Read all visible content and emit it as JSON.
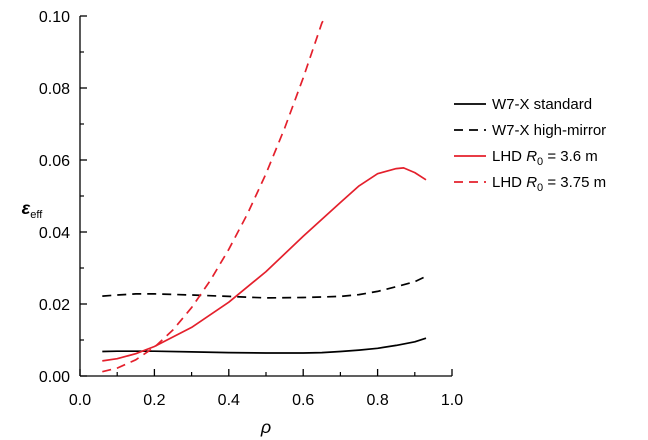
{
  "chart_data": {
    "type": "line",
    "title": "",
    "xlabel": "ρ",
    "ylabel": {
      "main": "ε",
      "sub": "eff"
    },
    "xlim": [
      0.0,
      1.0
    ],
    "ylim": [
      0.0,
      0.1
    ],
    "xticks": [
      0.0,
      0.2,
      0.4,
      0.6,
      0.8,
      1.0
    ],
    "xtick_labels": [
      "0.0",
      "0.2",
      "0.4",
      "0.6",
      "0.8",
      "1.0"
    ],
    "yticks": [
      0.0,
      0.02,
      0.04,
      0.06,
      0.08,
      0.1
    ],
    "ytick_labels": [
      "0.00",
      "0.02",
      "0.04",
      "0.06",
      "0.08",
      "0.10"
    ],
    "grid": false,
    "legend_position": "right",
    "series": [
      {
        "name": "W7-X standard",
        "legend": {
          "pre": "W7-X standard",
          "italic": "",
          "sub": "",
          "post": ""
        },
        "color": "#000000",
        "dash": "solid",
        "x": [
          0.06,
          0.1,
          0.2,
          0.3,
          0.4,
          0.5,
          0.6,
          0.65,
          0.7,
          0.75,
          0.8,
          0.85,
          0.9,
          0.93
        ],
        "y": [
          0.0068,
          0.0069,
          0.0069,
          0.0067,
          0.0065,
          0.0064,
          0.0064,
          0.0065,
          0.0068,
          0.0072,
          0.0077,
          0.0085,
          0.0095,
          0.0105
        ]
      },
      {
        "name": "W7-X high-mirror",
        "legend": {
          "pre": "W7-X high-mirror",
          "italic": "",
          "sub": "",
          "post": ""
        },
        "color": "#000000",
        "dash": "dashed",
        "x": [
          0.06,
          0.1,
          0.15,
          0.2,
          0.3,
          0.4,
          0.5,
          0.6,
          0.7,
          0.75,
          0.8,
          0.85,
          0.9,
          0.93
        ],
        "y": [
          0.0222,
          0.0225,
          0.0228,
          0.0228,
          0.0225,
          0.0221,
          0.0217,
          0.0218,
          0.0221,
          0.0226,
          0.0235,
          0.0248,
          0.0262,
          0.0277
        ]
      },
      {
        "name": "LHD R0 = 3.6 m",
        "legend": {
          "pre": "LHD ",
          "italic": "R",
          "sub": "0",
          "post": " = 3.6 m"
        },
        "color": "#e4202c",
        "dash": "solid",
        "x": [
          0.06,
          0.1,
          0.15,
          0.2,
          0.3,
          0.4,
          0.5,
          0.6,
          0.7,
          0.75,
          0.8,
          0.85,
          0.87,
          0.9,
          0.93
        ],
        "y": [
          0.0042,
          0.0048,
          0.0062,
          0.0082,
          0.0135,
          0.0205,
          0.029,
          0.0388,
          0.0482,
          0.0528,
          0.0562,
          0.0576,
          0.0578,
          0.0565,
          0.0545
        ]
      },
      {
        "name": "LHD R0 = 3.75 m",
        "legend": {
          "pre": "LHD ",
          "italic": "R",
          "sub": "0",
          "post": " = 3.75 m"
        },
        "color": "#e4202c",
        "dash": "dashed",
        "x": [
          0.06,
          0.1,
          0.15,
          0.2,
          0.25,
          0.3,
          0.35,
          0.4,
          0.45,
          0.5,
          0.55,
          0.6,
          0.65,
          0.66
        ],
        "y": [
          0.0012,
          0.0022,
          0.0045,
          0.008,
          0.0128,
          0.019,
          0.0265,
          0.0352,
          0.045,
          0.0562,
          0.0688,
          0.0828,
          0.098,
          0.1
        ]
      }
    ]
  }
}
